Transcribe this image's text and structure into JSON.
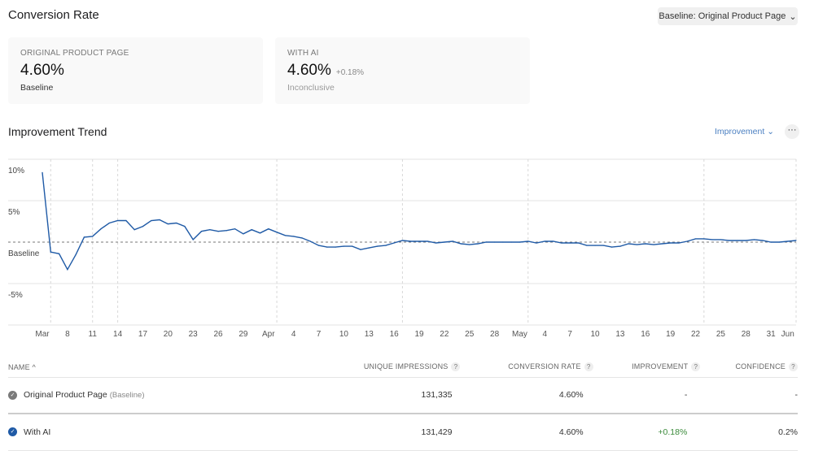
{
  "header": {
    "title": "Conversion Rate",
    "baseline_select": "Baseline: Original Product Page"
  },
  "cards": [
    {
      "label": "ORIGINAL PRODUCT PAGE",
      "value": "4.60%",
      "delta": "",
      "status": "Baseline"
    },
    {
      "label": "WITH AI",
      "value": "4.60%",
      "delta": "+0.18%",
      "status": "Inconclusive"
    }
  ],
  "trend": {
    "title": "Improvement Trend",
    "metric_select": "Improvement",
    "more": "···"
  },
  "colors": {
    "line": "#1f5aa6",
    "positive": "#3a8a3a",
    "accent": "#4a7fc1"
  },
  "chart_data": {
    "type": "line",
    "ylabel": "",
    "xlabel": "",
    "ylim": [
      -10,
      10
    ],
    "y_ticks": [
      {
        "value": 10,
        "label": "10%"
      },
      {
        "value": 5,
        "label": "5%"
      },
      {
        "value": 0,
        "label": "Baseline"
      },
      {
        "value": -5,
        "label": "-5%"
      }
    ],
    "grid": true,
    "x": [
      "Mar 5",
      "Mar 6",
      "Mar 7",
      "Mar 8",
      "Mar 9",
      "Mar 10",
      "Mar 11",
      "Mar 12",
      "Mar 13",
      "Mar 14",
      "Mar 15",
      "Mar 16",
      "Mar 17",
      "Mar 18",
      "Mar 19",
      "Mar 20",
      "Mar 21",
      "Mar 22",
      "Mar 23",
      "Mar 24",
      "Mar 25",
      "Mar 26",
      "Mar 27",
      "Mar 28",
      "Mar 29",
      "Mar 30",
      "Mar 31",
      "Apr 1",
      "Apr 2",
      "Apr 3",
      "Apr 4",
      "Apr 5",
      "Apr 6",
      "Apr 7",
      "Apr 8",
      "Apr 9",
      "Apr 10",
      "Apr 11",
      "Apr 12",
      "Apr 13",
      "Apr 14",
      "Apr 15",
      "Apr 16",
      "Apr 17",
      "Apr 18",
      "Apr 19",
      "Apr 20",
      "Apr 21",
      "Apr 22",
      "Apr 23",
      "Apr 24",
      "Apr 25",
      "Apr 26",
      "Apr 27",
      "Apr 28",
      "Apr 29",
      "Apr 30",
      "May 1",
      "May 2",
      "May 3",
      "May 4",
      "May 5",
      "May 6",
      "May 7",
      "May 8",
      "May 9",
      "May 10",
      "May 11",
      "May 12",
      "May 13",
      "May 14",
      "May 15",
      "May 16",
      "May 17",
      "May 18",
      "May 19",
      "May 20",
      "May 21",
      "May 22",
      "May 23",
      "May 24",
      "May 25",
      "May 26",
      "May 27",
      "May 28",
      "May 29",
      "May 30",
      "May 31",
      "Jun 1",
      "Jun 2",
      "Jun 3"
    ],
    "values": [
      8.4,
      -1.2,
      -1.4,
      -3.3,
      -1.5,
      0.6,
      0.7,
      1.6,
      2.3,
      2.6,
      2.6,
      1.5,
      1.9,
      2.6,
      2.7,
      2.2,
      2.3,
      1.9,
      0.3,
      1.3,
      1.5,
      1.3,
      1.4,
      1.6,
      1.0,
      1.5,
      1.1,
      1.6,
      1.2,
      0.8,
      0.7,
      0.5,
      0.1,
      -0.4,
      -0.6,
      -0.6,
      -0.5,
      -0.5,
      -0.9,
      -0.7,
      -0.5,
      -0.4,
      -0.1,
      0.2,
      0.1,
      0.1,
      0.1,
      -0.1,
      0,
      0.1,
      -0.2,
      -0.3,
      -0.2,
      0,
      0,
      0,
      0,
      0,
      0.1,
      -0.1,
      0.1,
      0.1,
      -0.1,
      -0.1,
      -0.1,
      -0.4,
      -0.4,
      -0.4,
      -0.6,
      -0.5,
      -0.2,
      -0.3,
      -0.2,
      -0.3,
      -0.2,
      -0.1,
      -0.1,
      0.1,
      0.4,
      0.4,
      0.3,
      0.3,
      0.2,
      0.2,
      0.2,
      0.3,
      0.2,
      0,
      0,
      0.1,
      0.2
    ],
    "x_ticks": [
      {
        "date": "Mar 5",
        "label": "Mar"
      },
      {
        "date": "Mar 8",
        "label": "8"
      },
      {
        "date": "Mar 11",
        "label": "11"
      },
      {
        "date": "Mar 14",
        "label": "14"
      },
      {
        "date": "Mar 17",
        "label": "17"
      },
      {
        "date": "Mar 20",
        "label": "20"
      },
      {
        "date": "Mar 23",
        "label": "23"
      },
      {
        "date": "Mar 26",
        "label": "26"
      },
      {
        "date": "Mar 29",
        "label": "29"
      },
      {
        "date": "Apr 1",
        "label": "Apr"
      },
      {
        "date": "Apr 4",
        "label": "4"
      },
      {
        "date": "Apr 7",
        "label": "7"
      },
      {
        "date": "Apr 10",
        "label": "10"
      },
      {
        "date": "Apr 13",
        "label": "13"
      },
      {
        "date": "Apr 16",
        "label": "16"
      },
      {
        "date": "Apr 19",
        "label": "19"
      },
      {
        "date": "Apr 22",
        "label": "22"
      },
      {
        "date": "Apr 25",
        "label": "25"
      },
      {
        "date": "Apr 28",
        "label": "28"
      },
      {
        "date": "May 1",
        "label": "May"
      },
      {
        "date": "May 4",
        "label": "4"
      },
      {
        "date": "May 7",
        "label": "7"
      },
      {
        "date": "May 10",
        "label": "10"
      },
      {
        "date": "May 13",
        "label": "13"
      },
      {
        "date": "May 16",
        "label": "16"
      },
      {
        "date": "May 19",
        "label": "19"
      },
      {
        "date": "May 22",
        "label": "22"
      },
      {
        "date": "May 25",
        "label": "25"
      },
      {
        "date": "May 28",
        "label": "28"
      },
      {
        "date": "May 31",
        "label": "31"
      },
      {
        "date": "Jun 2",
        "label": "Jun"
      }
    ],
    "event_markers": [
      "Mar 6",
      "Mar 11",
      "Mar 14",
      "Apr 2",
      "Apr 17",
      "May 2",
      "May 23",
      "Jun 3"
    ]
  },
  "table": {
    "columns": [
      {
        "label": "NAME ^"
      },
      {
        "label": "UNIQUE IMPRESSIONS",
        "help": "?"
      },
      {
        "label": "CONVERSION RATE",
        "help": "?"
      },
      {
        "label": "IMPROVEMENT",
        "help": "?"
      },
      {
        "label": "CONFIDENCE",
        "help": "?"
      }
    ],
    "rows": [
      {
        "name": "Original Product Page",
        "tag": "(Baseline)",
        "impressions": "131,335",
        "rate": "4.60%",
        "improvement": "-",
        "confidence": "-",
        "check_color": "#7a7a7a"
      },
      {
        "name": "With AI",
        "tag": "",
        "impressions": "131,429",
        "rate": "4.60%",
        "improvement": "+0.18%",
        "confidence": "0.2%",
        "check_color": "#1f5aa6"
      }
    ]
  }
}
